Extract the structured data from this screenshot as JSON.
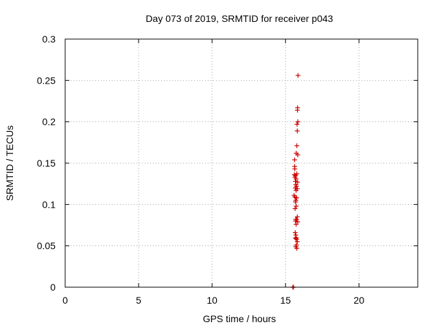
{
  "chart_data": {
    "type": "scatter",
    "title": "Day 073 of 2019, SRMTID for receiver p043",
    "xlabel": "GPS time / hours",
    "ylabel": "SRMTID / TECUs",
    "xlim": [
      0,
      24
    ],
    "ylim": [
      0,
      0.3
    ],
    "x_ticks": [
      0,
      5,
      10,
      15,
      20
    ],
    "x_tick_labels": [
      "0",
      "5",
      "10",
      "15",
      "20"
    ],
    "y_ticks": [
      0,
      0.05,
      0.1,
      0.15,
      0.2,
      0.25,
      0.3
    ],
    "y_tick_labels": [
      "0",
      "0.05",
      "0.1",
      "0.15",
      "0.2",
      "0.25",
      "0.3"
    ],
    "grid": true,
    "marker": "plus",
    "color": "#cc0000",
    "series": [
      {
        "points": [
          [
            15.5,
            0.0
          ],
          [
            15.52,
            0.0
          ],
          [
            15.54,
            0.0
          ],
          [
            15.85,
            0.256
          ],
          [
            15.82,
            0.217
          ],
          [
            15.81,
            0.214
          ],
          [
            15.84,
            0.2
          ],
          [
            15.78,
            0.197
          ],
          [
            15.8,
            0.189
          ],
          [
            15.77,
            0.171
          ],
          [
            15.73,
            0.162
          ],
          [
            15.83,
            0.16
          ],
          [
            15.62,
            0.154
          ],
          [
            15.62,
            0.146
          ],
          [
            15.63,
            0.143
          ],
          [
            15.77,
            0.137
          ],
          [
            15.6,
            0.136
          ],
          [
            15.68,
            0.135
          ],
          [
            15.64,
            0.133
          ],
          [
            15.72,
            0.131
          ],
          [
            15.67,
            0.128
          ],
          [
            15.82,
            0.127
          ],
          [
            15.7,
            0.124
          ],
          [
            15.75,
            0.122
          ],
          [
            15.66,
            0.12
          ],
          [
            15.8,
            0.119
          ],
          [
            15.72,
            0.117
          ],
          [
            15.58,
            0.111
          ],
          [
            15.64,
            0.109
          ],
          [
            15.76,
            0.108
          ],
          [
            15.7,
            0.105
          ],
          [
            15.68,
            0.103
          ],
          [
            15.73,
            0.098
          ],
          [
            15.65,
            0.095
          ],
          [
            15.8,
            0.085
          ],
          [
            15.7,
            0.082
          ],
          [
            15.75,
            0.082
          ],
          [
            15.68,
            0.08
          ],
          [
            15.83,
            0.079
          ],
          [
            15.72,
            0.076
          ],
          [
            15.66,
            0.066
          ],
          [
            15.7,
            0.063
          ],
          [
            15.72,
            0.06
          ],
          [
            15.68,
            0.059
          ],
          [
            15.76,
            0.058
          ],
          [
            15.8,
            0.055
          ],
          [
            15.74,
            0.051
          ],
          [
            15.7,
            0.049
          ],
          [
            15.77,
            0.047
          ]
        ]
      }
    ]
  }
}
